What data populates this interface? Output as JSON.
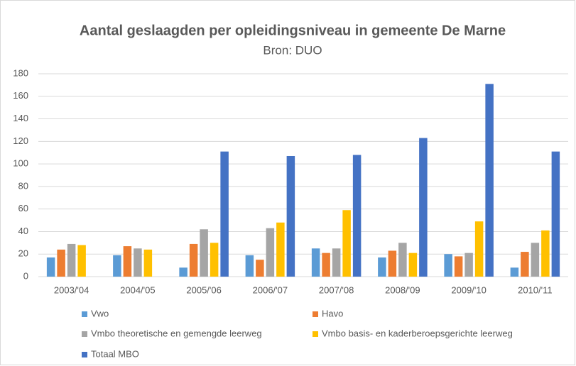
{
  "chart_data": {
    "type": "bar",
    "title": "Aantal geslaagden per opleidingsniveau in gemeente De Marne",
    "subtitle": "Bron: DUO",
    "categories": [
      "2003/'04",
      "2004/'05",
      "2005/'06",
      "2006/'07",
      "2007/'08",
      "2008/'09",
      "2009/'10",
      "2010/'11"
    ],
    "series": [
      {
        "name": "Vwo",
        "color": "#5b9bd5",
        "values": [
          17,
          19,
          8,
          19,
          25,
          17,
          20,
          8
        ]
      },
      {
        "name": "Havo",
        "color": "#ed7d31",
        "values": [
          24,
          27,
          29,
          15,
          21,
          23,
          18,
          22
        ]
      },
      {
        "name": "Vmbo theoretische en gemengde leerweg",
        "color": "#a5a5a5",
        "values": [
          29,
          25,
          42,
          43,
          25,
          30,
          21,
          30
        ]
      },
      {
        "name": "Vmbo basis- en kaderberoepsgerichte leerweg",
        "color": "#ffc000",
        "values": [
          28,
          24,
          30,
          48,
          59,
          21,
          49,
          41
        ]
      },
      {
        "name": "Totaal MBO",
        "color": "#4472c4",
        "values": [
          null,
          null,
          111,
          107,
          108,
          123,
          171,
          111
        ]
      }
    ],
    "ylim": [
      0,
      180
    ],
    "yticks": [
      0,
      20,
      40,
      60,
      80,
      100,
      120,
      140,
      160,
      180
    ],
    "grid": true
  }
}
